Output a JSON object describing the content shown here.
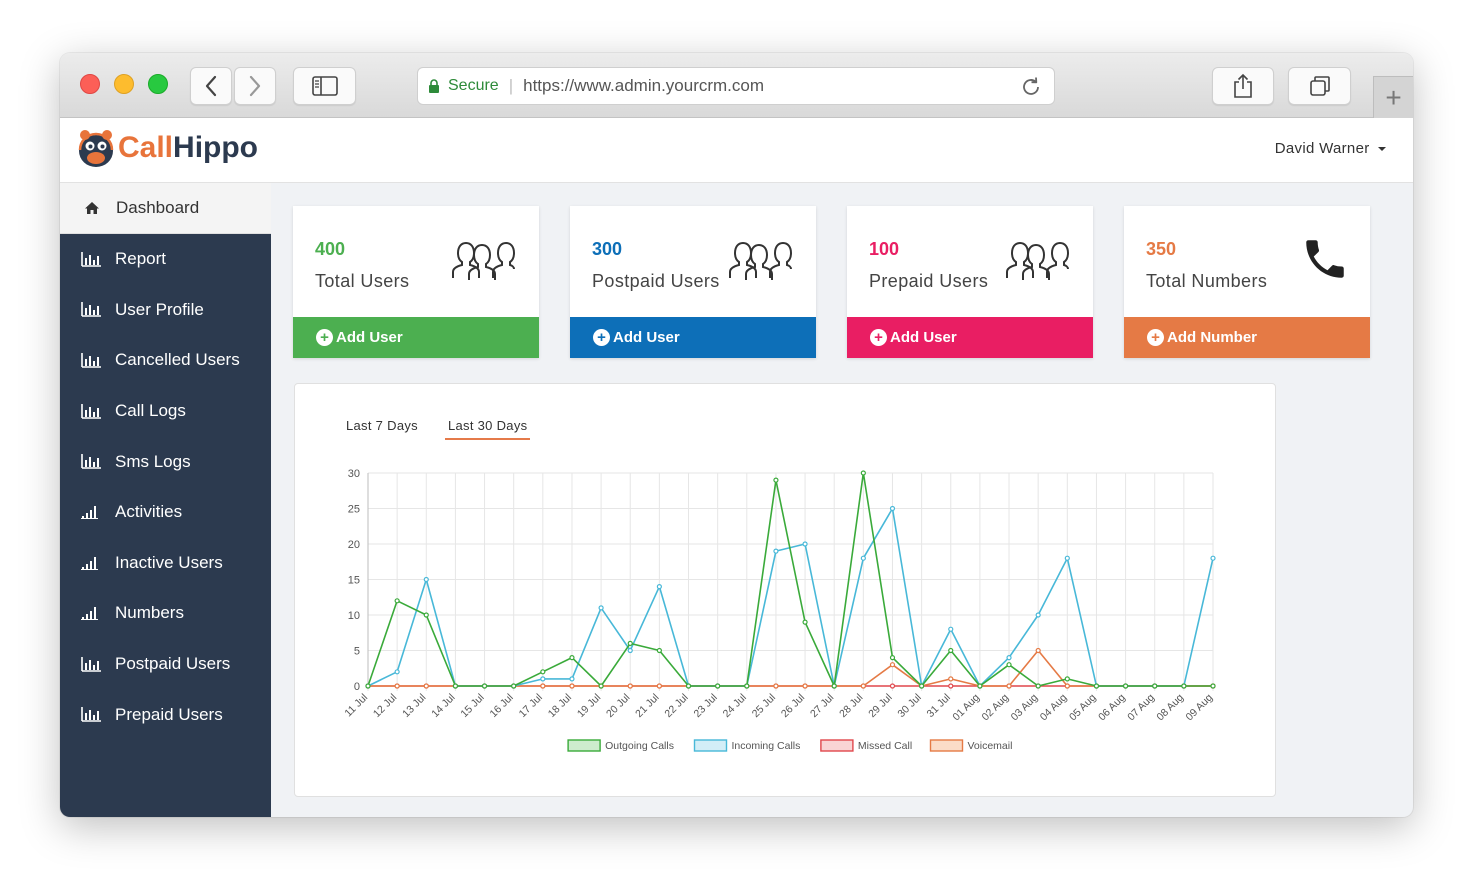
{
  "browser": {
    "secure_label": "Secure",
    "url": "https://www.admin.yourcrm.com",
    "newtab_icon": "plus-icon"
  },
  "header": {
    "logo": {
      "part1": "Call",
      "part2": "Hippo",
      "color1": "#e8743b",
      "color2": "#2c3a4f"
    },
    "user_name": "David Warner"
  },
  "sidebar": {
    "active": {
      "label": "Dashboard",
      "icon": "home-icon"
    },
    "items": [
      {
        "label": "Report",
        "icon": "bar-chart-icon"
      },
      {
        "label": "User Profile",
        "icon": "bar-chart-icon"
      },
      {
        "label": "Cancelled Users",
        "icon": "bar-chart-icon"
      },
      {
        "label": "Call Logs",
        "icon": "bar-chart-icon"
      },
      {
        "label": "Sms Logs",
        "icon": "bar-chart-icon"
      },
      {
        "label": "Activities",
        "icon": "signal-icon"
      },
      {
        "label": "Inactive Users",
        "icon": "signal-icon"
      },
      {
        "label": "Numbers",
        "icon": "signal-icon"
      },
      {
        "label": "Postpaid Users",
        "icon": "bar-chart-icon"
      },
      {
        "label": "Prepaid Users",
        "icon": "bar-chart-icon"
      }
    ]
  },
  "cards": [
    {
      "value": "400",
      "label": "Total Users",
      "action": "Add User",
      "color": "#4caf50",
      "icon": "users-group-icon"
    },
    {
      "value": "300",
      "label": "Postpaid Users",
      "action": "Add User",
      "color": "#0d6fb8",
      "icon": "users-group-icon"
    },
    {
      "value": "100",
      "label": "Prepaid Users",
      "action": "Add User",
      "color": "#e91e63",
      "icon": "users-group-icon"
    },
    {
      "value": "350",
      "label": "Total Numbers",
      "action": "Add Number",
      "color": "#e57a45",
      "icon": "phone-icon"
    }
  ],
  "chart_tabs": {
    "tab1": "Last 7 Days",
    "tab2": "Last 30 Days",
    "active": "Last 30 Days"
  },
  "chart_data": {
    "type": "line",
    "title": "",
    "xlabel": "",
    "ylabel": "",
    "ylim": [
      0,
      30
    ],
    "yticks": [
      0,
      5,
      10,
      15,
      20,
      25,
      30
    ],
    "grid": true,
    "legend_position": "bottom",
    "x": [
      "11 Jul",
      "12 Jul",
      "13 Jul",
      "14 Jul",
      "15 Jul",
      "16 Jul",
      "17 Jul",
      "18 Jul",
      "19 Jul",
      "20 Jul",
      "21 Jul",
      "22 Jul",
      "23 Jul",
      "24 Jul",
      "25 Jul",
      "26 Jul",
      "27 Jul",
      "28 Jul",
      "29 Jul",
      "30 Jul",
      "31 Jul",
      "01 Aug",
      "02 Aug",
      "03 Aug",
      "04 Aug",
      "05 Aug",
      "06 Aug",
      "07 Aug",
      "08 Aug",
      "09 Aug"
    ],
    "series": [
      {
        "name": "Outgoing Calls",
        "color": "#3aaa3a",
        "fill": "#cdeccd",
        "values": [
          0,
          12,
          10,
          0,
          0,
          0,
          2,
          4,
          0,
          6,
          5,
          0,
          0,
          0,
          29,
          9,
          0,
          30,
          4,
          0,
          5,
          0,
          3,
          0,
          1,
          0,
          0,
          0,
          0,
          0
        ]
      },
      {
        "name": "Incoming Calls",
        "color": "#48b8d8",
        "fill": "#d3eef7",
        "values": [
          0,
          2,
          15,
          0,
          0,
          0,
          1,
          1,
          11,
          5,
          14,
          0,
          0,
          0,
          19,
          20,
          0,
          18,
          25,
          0,
          8,
          0,
          4,
          10,
          18,
          0,
          0,
          0,
          0,
          18
        ]
      },
      {
        "name": "Missed Call",
        "color": "#e0474c",
        "fill": "#f9d4d5",
        "values": [
          0,
          0,
          0,
          0,
          0,
          0,
          0,
          0,
          0,
          0,
          0,
          0,
          0,
          0,
          0,
          0,
          0,
          0,
          0,
          0,
          0,
          0,
          0,
          0,
          0,
          0,
          0,
          0,
          0,
          0
        ]
      },
      {
        "name": "Voicemail",
        "color": "#e57a45",
        "fill": "#fbdcc8",
        "values": [
          0,
          0,
          0,
          0,
          0,
          0,
          0,
          0,
          0,
          0,
          0,
          0,
          0,
          0,
          0,
          0,
          0,
          0,
          3,
          0,
          1,
          0,
          0,
          5,
          0,
          0,
          0,
          0,
          0,
          0
        ]
      }
    ]
  }
}
